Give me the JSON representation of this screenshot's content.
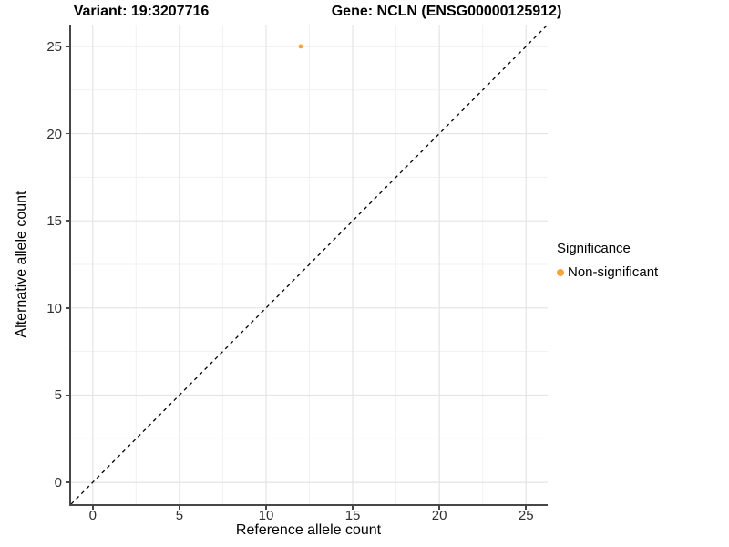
{
  "chart_data": {
    "type": "scatter",
    "title_variant": "Variant: 19:3207716",
    "title_gene": "Gene: NCLN (ENSG00000125912)",
    "xlabel": "Reference allele count",
    "ylabel": "Alternative allele count",
    "xlim": [
      -1.25,
      26.25
    ],
    "ylim": [
      -1.25,
      26.25
    ],
    "x_ticks": [
      0,
      5,
      10,
      15,
      20,
      25
    ],
    "y_ticks": [
      0,
      5,
      10,
      15,
      20,
      25
    ],
    "x_minor_ticks": [
      2.5,
      7.5,
      12.5,
      17.5,
      22.5
    ],
    "y_minor_ticks": [
      2.5,
      7.5,
      12.5,
      17.5,
      22.5
    ],
    "grid": "major+minor",
    "points": [
      {
        "x": 12,
        "y": 25,
        "series": "Non-significant"
      }
    ],
    "reference_line": {
      "kind": "identity",
      "slope": 1,
      "intercept": 0,
      "dashed": true
    },
    "legend": {
      "title": "Significance",
      "position": "right",
      "entries": [
        {
          "label": "Non-significant",
          "color": "#FDA33C"
        }
      ]
    }
  },
  "style": {
    "point_color": "#FDA33C",
    "grid_major": "#E4E4E4",
    "grid_minor": "#F1F1F1",
    "axis_line": "#474747",
    "tick_text": "#303030",
    "reference_line_color": "#000000"
  }
}
